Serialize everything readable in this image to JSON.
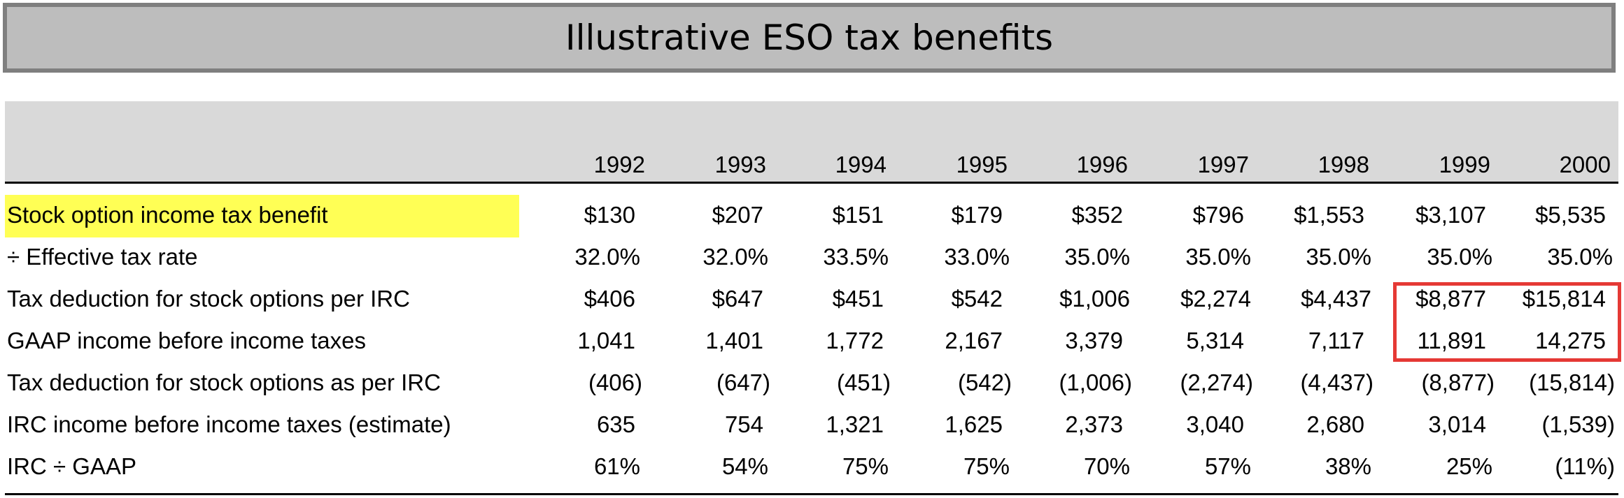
{
  "title": "Illustrative ESO tax benefits",
  "years": [
    "1992",
    "1993",
    "1994",
    "1995",
    "1996",
    "1997",
    "1998",
    "1999",
    "2000"
  ],
  "rows": [
    {
      "label": "Stock option income tax benefit",
      "values": [
        "$130",
        "$207",
        "$151",
        "$179",
        "$352",
        "$796",
        "$1,553",
        "$3,107",
        "$5,535"
      ]
    },
    {
      "label": "÷ Effective tax rate",
      "values": [
        "32.0%",
        "32.0%",
        "33.5%",
        "33.0%",
        "35.0%",
        "35.0%",
        "35.0%",
        "35.0%",
        "35.0%"
      ]
    },
    {
      "label": "Tax deduction for stock options per IRC",
      "values": [
        "$406",
        "$647",
        "$451",
        "$542",
        "$1,006",
        "$2,274",
        "$4,437",
        "$8,877",
        "$15,814"
      ]
    },
    {
      "label": "GAAP income before income taxes",
      "values": [
        "1,041",
        "1,401",
        "1,772",
        "2,167",
        "3,379",
        "5,314",
        "7,117",
        "11,891",
        "14,275"
      ]
    },
    {
      "label": "Tax deduction for stock options as per IRC",
      "values": [
        "(406)",
        "(647)",
        "(451)",
        "(542)",
        "(1,006)",
        "(2,274)",
        "(4,437)",
        "(8,877)",
        "(15,814)"
      ]
    },
    {
      "label": "IRC income before income taxes (estimate)",
      "values": [
        "635",
        "754",
        "1,321",
        "1,625",
        "2,373",
        "3,040",
        "2,680",
        "3,014",
        "(1,539)"
      ]
    },
    {
      "label": "IRC ÷ GAAP",
      "values": [
        "61%",
        "54%",
        "75%",
        "75%",
        "70%",
        "57%",
        "38%",
        "25%",
        "(11%)"
      ]
    }
  ],
  "colors": {
    "highlight": "#ffff55",
    "red_box": "#e53935",
    "title_bg": "#bdbdbd",
    "title_border": "#7f7f7f",
    "header_bg": "#d9d9d9"
  }
}
